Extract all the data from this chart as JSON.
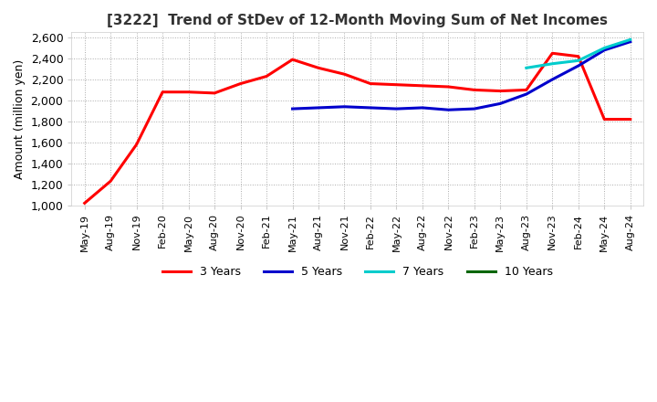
{
  "title": "[3222]  Trend of StDev of 12-Month Moving Sum of Net Incomes",
  "ylabel": "Amount (million yen)",
  "ylim": [
    1000,
    2650
  ],
  "yticks": [
    1000,
    1200,
    1400,
    1600,
    1800,
    2000,
    2200,
    2400,
    2600
  ],
  "bg_color": "#ffffff",
  "grid_color": "#aaaaaa",
  "line_colors": {
    "3y": "#ff0000",
    "5y": "#0000cc",
    "7y": "#00cccc",
    "10y": "#006600"
  },
  "legend": [
    "3 Years",
    "5 Years",
    "7 Years",
    "10 Years"
  ],
  "x_labels": [
    "May-19",
    "Aug-19",
    "Nov-19",
    "Feb-20",
    "May-20",
    "Aug-20",
    "Nov-20",
    "Feb-21",
    "May-21",
    "Aug-21",
    "Nov-21",
    "Feb-22",
    "May-22",
    "Aug-22",
    "Nov-22",
    "Feb-23",
    "May-23",
    "Aug-23",
    "Nov-23",
    "Feb-24",
    "May-24",
    "Aug-24"
  ],
  "series_3y": [
    1020,
    1230,
    1580,
    2080,
    2080,
    2070,
    2160,
    2230,
    2390,
    2310,
    2250,
    2160,
    2150,
    2140,
    2130,
    2100,
    2090,
    2100,
    2450,
    2420,
    1820,
    1820
  ],
  "series_5y": [
    null,
    null,
    null,
    null,
    null,
    null,
    null,
    null,
    1920,
    1930,
    1940,
    1930,
    1920,
    1930,
    1910,
    1920,
    1970,
    2060,
    2200,
    2330,
    2480,
    2560
  ],
  "series_7y": [
    null,
    null,
    null,
    null,
    null,
    null,
    null,
    null,
    null,
    null,
    null,
    null,
    null,
    null,
    null,
    null,
    null,
    2310,
    2350,
    2380,
    2500,
    2580
  ],
  "series_10y": [
    null,
    null,
    null,
    null,
    null,
    null,
    null,
    null,
    null,
    null,
    null,
    null,
    null,
    null,
    null,
    null,
    null,
    null,
    null,
    null,
    null,
    null
  ]
}
